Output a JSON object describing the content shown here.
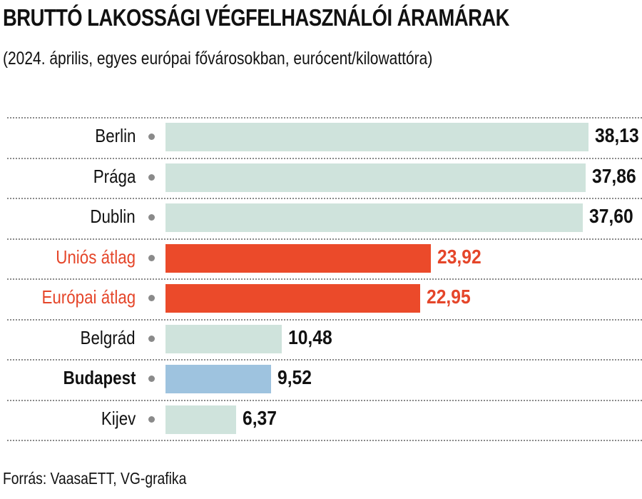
{
  "header": {
    "title": "BRUTTÓ LAKOSSÁGI VÉGFELHASZNÁLÓI ÁRAMÁRAK",
    "subtitle": "(2024. április, egyes európai fővárosokban, eurócent/kilowattóra)"
  },
  "footer": {
    "source": "Forrás: VaasaETT, VG-grafika"
  },
  "colors": {
    "city_bar": "#cfe3dc",
    "average_bar": "#eb4a2a",
    "average_text": "#e5462a",
    "highlight_bar": "#9ec3df",
    "rule": "#8a8a8a"
  },
  "chart_data": {
    "type": "bar",
    "orientation": "horizontal",
    "title": "BRUTTÓ LAKOSSÁGI VÉGFELHASZNÁLÓI ÁRAMÁRAK",
    "subtitle": "(2024. április, egyes európai fővárosokban, eurócent/kilowattóra)",
    "unit": "eurócent/kilowattóra",
    "categories": [
      "Berlin",
      "Prága",
      "Dublin",
      "Uniós átlag",
      "Európai átlag",
      "Belgrád",
      "Budapest",
      "Kijev"
    ],
    "values": [
      38.13,
      37.86,
      37.6,
      23.92,
      22.95,
      10.48,
      9.52,
      6.37
    ],
    "value_labels": [
      "38,13",
      "37,86",
      "37,60",
      "23,92",
      "22,95",
      "10,48",
      "9,52",
      "6,37"
    ],
    "kinds": [
      "city",
      "city",
      "city",
      "average",
      "average",
      "city",
      "highlight",
      "city"
    ],
    "xlim": [
      0,
      40
    ],
    "grid": false,
    "legend": "none"
  }
}
